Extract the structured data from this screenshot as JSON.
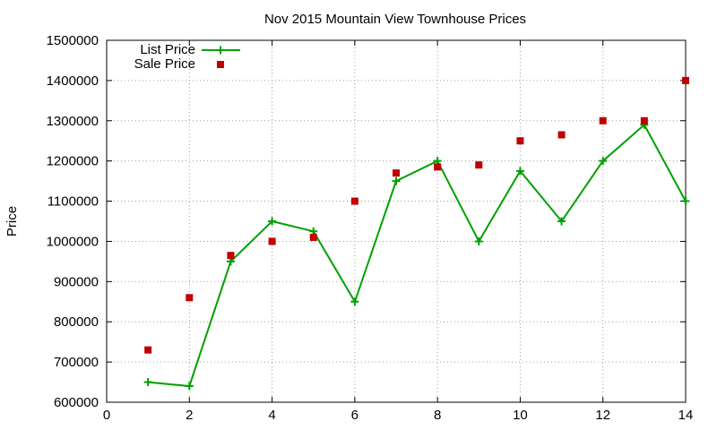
{
  "chart_data": {
    "type": "line",
    "title": "Nov 2015 Mountain View Townhouse Prices",
    "xlabel": "",
    "ylabel": "Price",
    "xlim": [
      0,
      14
    ],
    "ylim": [
      600000,
      1500000
    ],
    "xticks": [
      0,
      2,
      4,
      6,
      8,
      10,
      12,
      14
    ],
    "yticks": [
      600000,
      700000,
      800000,
      900000,
      1000000,
      1100000,
      1200000,
      1300000,
      1400000,
      1500000
    ],
    "grid": true,
    "legend_position": "top-left",
    "series": [
      {
        "name": "List Price",
        "style": "line-with-plus-markers",
        "color": "#00a000",
        "x": [
          1,
          2,
          3,
          4,
          5,
          6,
          7,
          8,
          9,
          10,
          11,
          12,
          13,
          14
        ],
        "y": [
          650000,
          640000,
          950000,
          1050000,
          1025000,
          850000,
          1150000,
          1200000,
          1000000,
          1175000,
          1050000,
          1200000,
          1290000,
          1100000
        ]
      },
      {
        "name": "Sale Price",
        "style": "square-markers",
        "color": "#c00000",
        "x": [
          1,
          2,
          3,
          4,
          5,
          6,
          7,
          8,
          9,
          10,
          11,
          12,
          13,
          14
        ],
        "y": [
          730000,
          860000,
          965000,
          1000000,
          1010000,
          1100000,
          1170000,
          1185000,
          1190000,
          1250000,
          1265000,
          1300000,
          1300000,
          1400000
        ]
      }
    ]
  }
}
